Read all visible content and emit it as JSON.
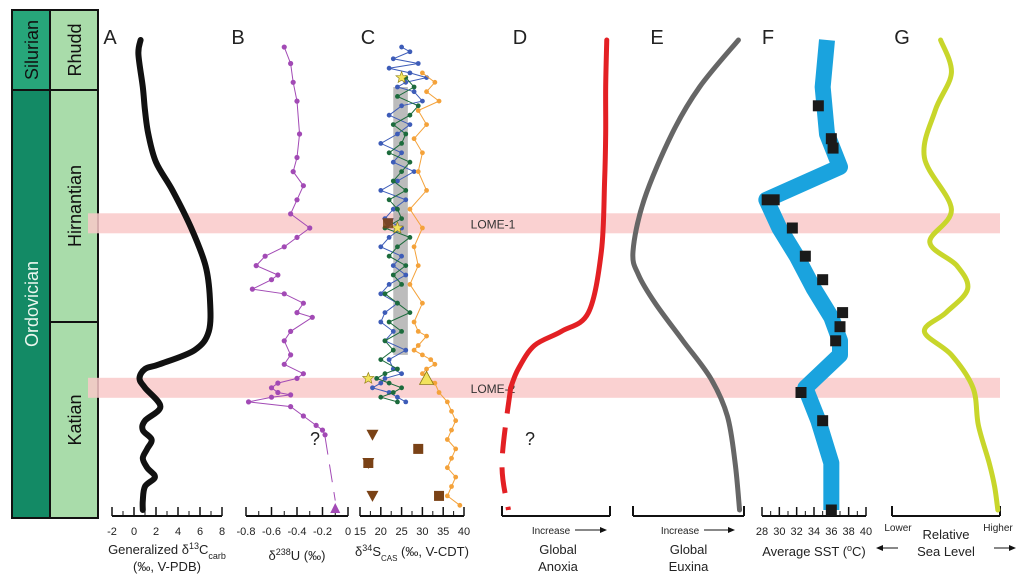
{
  "chart_data": {
    "type": "line",
    "stratigraphy": {
      "systems": [
        {
          "name": "Silurian",
          "color": "#27a67a"
        },
        {
          "name": "Ordovician",
          "color": "#138a65"
        }
      ],
      "stages": [
        {
          "name": "Rhudd",
          "color": "#a9dcaa"
        },
        {
          "name": "Hirnantian",
          "color": "#a9dcaa"
        },
        {
          "name": "Katian",
          "color": "#a9dcaa"
        }
      ]
    },
    "events": [
      {
        "label": "LOME-2",
        "y_frac": 0.26
      },
      {
        "label": "LOME-1",
        "y_frac": 0.61
      }
    ],
    "panels": [
      {
        "letter": "A",
        "xlabel_parts": [
          "Generalized δ",
          "13",
          "C",
          "carb"
        ],
        "xlabel2": "(‰, V-PDB)",
        "ticks": [
          "-2",
          "0",
          "2",
          "4",
          "6",
          "8"
        ],
        "xlim": [
          -2,
          8
        ],
        "color": "#111111",
        "series": [
          {
            "name": "",
            "x": [
              0.6,
              0.4,
              0.8,
              1.0,
              1.3,
              2.0,
              3.5,
              5.2,
              6.5,
              6.9,
              6.8,
              5.5,
              2.3,
              1.0,
              0.5,
              1.0,
              2.4,
              1.0,
              0.8,
              1.6,
              1.2,
              0.8,
              1.2,
              1.9,
              1.0,
              0.8,
              0.8
            ],
            "y": [
              1.0,
              0.97,
              0.9,
              0.85,
              0.8,
              0.74,
              0.68,
              0.6,
              0.52,
              0.45,
              0.38,
              0.34,
              0.31,
              0.3,
              0.28,
              0.26,
              0.22,
              0.19,
              0.17,
              0.15,
              0.13,
              0.11,
              0.09,
              0.07,
              0.05,
              0.02,
              0.0
            ]
          }
        ]
      },
      {
        "letter": "B",
        "xlabel_parts": [
          "δ",
          "238",
          "U (‰)",
          ""
        ],
        "ticks": [
          "-0.8",
          "-0.6",
          "-0.4",
          "-0.2",
          "0"
        ],
        "xlim": [
          -0.8,
          0
        ],
        "color": "#a24ab5",
        "series": [
          {
            "name": "",
            "x": [
              -0.5,
              -0.45,
              -0.43,
              -0.4,
              -0.38,
              -0.4,
              -0.43,
              -0.35,
              -0.4,
              -0.45,
              -0.3,
              -0.4,
              -0.5,
              -0.65,
              -0.72,
              -0.55,
              -0.6,
              -0.75,
              -0.5,
              -0.35,
              -0.4,
              -0.28,
              -0.45,
              -0.5,
              -0.45,
              -0.5,
              -0.35,
              -0.4,
              -0.55,
              -0.6,
              -0.55,
              -0.45,
              -0.6,
              -0.78,
              -0.45,
              -0.35,
              -0.25,
              -0.2,
              -0.18
            ],
            "y": [
              0.985,
              0.95,
              0.91,
              0.87,
              0.8,
              0.75,
              0.72,
              0.69,
              0.66,
              0.63,
              0.6,
              0.58,
              0.56,
              0.54,
              0.52,
              0.5,
              0.49,
              0.47,
              0.46,
              0.44,
              0.42,
              0.41,
              0.38,
              0.36,
              0.33,
              0.31,
              0.29,
              0.28,
              0.27,
              0.26,
              0.25,
              0.245,
              0.24,
              0.23,
              0.22,
              0.2,
              0.18,
              0.17,
              0.16
            ]
          }
        ],
        "question_mark": "?"
      },
      {
        "letter": "C",
        "xlabel_parts": [
          "δ",
          "34",
          "S",
          "CAS",
          " (‰, V-CDT)"
        ],
        "ticks": [
          "15",
          "20",
          "25",
          "30",
          "35",
          "40"
        ],
        "xlim": [
          15,
          40
        ],
        "series": [
          {
            "name": "",
            "color": "#3d5cb8",
            "x": [
              25,
              27,
              23,
              29,
              22,
              27,
              31,
              26,
              24,
              28,
              30,
              25,
              22,
              27,
              24,
              20,
              25,
              23,
              28,
              24,
              20,
              26,
              23,
              21,
              25,
              22,
              20,
              25,
              23,
              26,
              22,
              20,
              24,
              21,
              20,
              23,
              21,
              26,
              22,
              23,
              25,
              21,
              20,
              18,
              22,
              24,
              26
            ],
            "y": [
              0.985,
              0.975,
              0.96,
              0.95,
              0.94,
              0.93,
              0.92,
              0.91,
              0.9,
              0.89,
              0.87,
              0.86,
              0.84,
              0.82,
              0.8,
              0.78,
              0.76,
              0.74,
              0.72,
              0.7,
              0.68,
              0.66,
              0.64,
              0.62,
              0.6,
              0.58,
              0.56,
              0.54,
              0.52,
              0.5,
              0.48,
              0.46,
              0.44,
              0.42,
              0.4,
              0.38,
              0.36,
              0.34,
              0.32,
              0.3,
              0.29,
              0.28,
              0.27,
              0.26,
              0.25,
              0.24,
              0.23
            ]
          },
          {
            "name": "",
            "color": "#1c6b3c",
            "x": [
              26,
              28,
              24,
              29,
              27,
              23,
              26,
              25,
              22,
              27,
              25,
              23,
              26,
              22,
              24,
              25,
              21,
              27,
              24,
              22,
              26,
              23,
              25,
              21,
              24,
              27,
              22,
              25,
              21,
              23,
              20,
              24,
              21,
              19,
              22,
              25,
              23,
              20,
              24
            ],
            "y": [
              0.92,
              0.9,
              0.88,
              0.86,
              0.84,
              0.82,
              0.8,
              0.78,
              0.76,
              0.74,
              0.72,
              0.7,
              0.68,
              0.66,
              0.64,
              0.62,
              0.6,
              0.58,
              0.56,
              0.54,
              0.52,
              0.5,
              0.48,
              0.46,
              0.44,
              0.42,
              0.4,
              0.38,
              0.36,
              0.34,
              0.32,
              0.3,
              0.29,
              0.28,
              0.27,
              0.26,
              0.25,
              0.24,
              0.23
            ]
          },
          {
            "name": "",
            "color": "#f4a23a",
            "x": [
              30,
              33,
              31,
              34,
              29,
              31,
              28,
              30,
              29,
              31,
              27,
              30,
              28,
              29,
              27,
              30,
              28,
              29,
              31,
              29,
              28,
              30,
              32,
              33,
              31,
              30,
              33,
              34,
              36,
              37,
              38,
              37,
              36,
              38,
              37,
              36,
              38,
              37,
              36,
              39
            ],
            "y": [
              0.93,
              0.91,
              0.89,
              0.87,
              0.85,
              0.82,
              0.79,
              0.76,
              0.72,
              0.68,
              0.64,
              0.6,
              0.56,
              0.52,
              0.48,
              0.44,
              0.4,
              0.38,
              0.37,
              0.35,
              0.34,
              0.33,
              0.32,
              0.31,
              0.3,
              0.29,
              0.27,
              0.25,
              0.23,
              0.21,
              0.19,
              0.17,
              0.15,
              0.13,
              0.11,
              0.09,
              0.07,
              0.05,
              0.03,
              0.01
            ]
          }
        ],
        "grey_band": {
          "x": [
            23,
            26.5
          ],
          "y": [
            0.33,
            0.9
          ]
        },
        "triangles": [
          {
            "x": 18,
            "y": 0.16
          },
          {
            "x": 17,
            "y": 0.1
          },
          {
            "x": 18,
            "y": 0.03
          }
        ],
        "squares": [
          {
            "x": 17,
            "y": 0.1
          },
          {
            "x": 29,
            "y": 0.13
          },
          {
            "x": 34,
            "y": 0.03
          }
        ],
        "stars": [
          {
            "x": 25,
            "y": 0.92
          },
          {
            "x": 24,
            "y": 0.6
          },
          {
            "x": 17,
            "y": 0.28
          }
        ],
        "yellow_triangle": {
          "x": 31,
          "y": 0.28
        },
        "purple_triangle": {
          "x": -0.1,
          "y": 0.0
        }
      },
      {
        "letter": "D",
        "xlabel": "Global",
        "xlabel2": "Anoxia",
        "arrow_label": "Increase",
        "color": "#e32024",
        "series": [
          {
            "name": "",
            "x": [
              0.97,
              0.96,
              0.96,
              0.95,
              0.92,
              0.8,
              0.55,
              0.3,
              0.15,
              0.08
            ],
            "y": [
              1.0,
              0.9,
              0.8,
              0.7,
              0.55,
              0.42,
              0.38,
              0.35,
              0.3,
              0.26
            ]
          }
        ],
        "dashed_tail": {
          "x": [
            0.08,
            0.0,
            0.06
          ],
          "y": [
            0.26,
            0.1,
            0.0
          ]
        },
        "question_mark": "?"
      },
      {
        "letter": "E",
        "xlabel": "Global",
        "xlabel2": "Euxina",
        "arrow_label": "Increase",
        "color": "#666666",
        "series": [
          {
            "name": "",
            "x": [
              0.95,
              0.6,
              0.35,
              0.1,
              0.0,
              0.05,
              0.2,
              0.45,
              0.7,
              0.85,
              0.92,
              0.96
            ],
            "y": [
              1.0,
              0.9,
              0.8,
              0.66,
              0.55,
              0.5,
              0.44,
              0.36,
              0.28,
              0.2,
              0.1,
              0.0
            ]
          }
        ]
      },
      {
        "letter": "F",
        "xlabel": "Average SST (",
        "xlabel_unit_sup": "o",
        "xlabel_unit": "C)",
        "ticks": [
          "28",
          "30",
          "32",
          "34",
          "36",
          "38",
          "40"
        ],
        "xlim": [
          28,
          40
        ],
        "color": "#1aa3de",
        "series": [
          {
            "name": "",
            "x": [
              35.5,
              35,
              35.5,
              37,
              28.5,
              30,
              32,
              34,
              36,
              37,
              37,
              33,
              34.5,
              36,
              36
            ],
            "y": [
              1.0,
              0.9,
              0.8,
              0.73,
              0.66,
              0.6,
              0.54,
              0.47,
              0.41,
              0.36,
              0.33,
              0.26,
              0.19,
              0.1,
              0.0
            ]
          }
        ],
        "points": [
          {
            "x": 34.5,
            "y": 0.86
          },
          {
            "x": 36.0,
            "y": 0.79
          },
          {
            "x": 36.2,
            "y": 0.77
          },
          {
            "x": 29.0,
            "y": 0.66
          },
          {
            "x": 31.5,
            "y": 0.6
          },
          {
            "x": 33.0,
            "y": 0.54
          },
          {
            "x": 35.0,
            "y": 0.49
          },
          {
            "x": 37.3,
            "y": 0.42
          },
          {
            "x": 37.0,
            "y": 0.39
          },
          {
            "x": 36.5,
            "y": 0.36
          },
          {
            "x": 32.5,
            "y": 0.25
          },
          {
            "x": 35.0,
            "y": 0.19
          },
          {
            "x": 36.0,
            "y": 0.0
          }
        ]
      },
      {
        "letter": "G",
        "xlabel": "Relative",
        "xlabel2": "Sea Level",
        "lower_label": "Lower",
        "higher_label": "Higher",
        "color": "#c8d62b",
        "series": [
          {
            "name": "",
            "x": [
              0.45,
              0.55,
              0.4,
              0.3,
              0.55,
              0.35,
              0.6,
              0.7,
              0.5,
              0.3,
              0.55,
              0.75,
              0.8,
              0.9,
              0.95,
              0.98
            ],
            "y": [
              1.0,
              0.93,
              0.85,
              0.75,
              0.64,
              0.57,
              0.52,
              0.47,
              0.42,
              0.38,
              0.33,
              0.26,
              0.18,
              0.1,
              0.05,
              0.0
            ]
          }
        ]
      }
    ]
  }
}
